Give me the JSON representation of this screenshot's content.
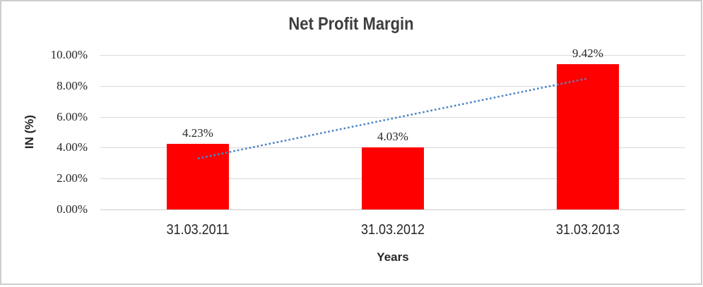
{
  "chart_data": {
    "type": "bar",
    "title": "Net Profit Margin",
    "xlabel": "Years",
    "ylabel": "IN (%)",
    "categories": [
      "31.03.2011",
      "31.03.2012",
      "31.03.2013"
    ],
    "values": [
      4.23,
      4.03,
      9.42
    ],
    "value_labels": [
      "4.23%",
      "4.03%",
      "9.42%"
    ],
    "ylim": [
      0,
      10
    ],
    "ytick_values": [
      0,
      2,
      4,
      6,
      8,
      10
    ],
    "ytick_labels": [
      "0.00%",
      "2.00%",
      "4.00%",
      "6.00%",
      "8.00%",
      "10.00%"
    ],
    "grid": true,
    "legend": "none",
    "bar_color": "#ff0000",
    "gridline_color": "#d9d9d9",
    "trendline": {
      "kind": "linear",
      "style": "dotted",
      "color": "#4f86c6"
    },
    "frame_border_color": "#cdcdcd",
    "title_color": "#3d3d3d",
    "text_color": "#262626"
  }
}
